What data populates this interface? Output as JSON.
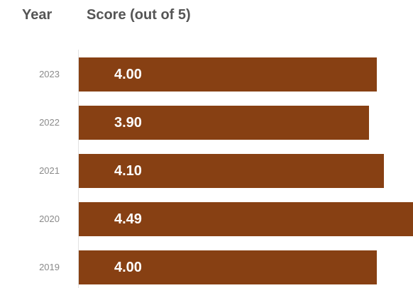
{
  "headers": {
    "year": "Year",
    "score": "Score (out of 5)"
  },
  "chart_data": {
    "type": "bar",
    "orientation": "horizontal",
    "title": "",
    "xlabel": "Score (out of 5)",
    "ylabel": "Year",
    "categories": [
      "2023",
      "2022",
      "2021",
      "2020",
      "2019"
    ],
    "values": [
      4.0,
      3.9,
      4.1,
      4.49,
      4.0
    ],
    "value_labels": [
      "4.00",
      "3.90",
      "4.10",
      "4.49",
      "4.00"
    ],
    "xlim": [
      0,
      4.49
    ],
    "grid": false,
    "bar_color": "#874013",
    "label_color": "#ffffff"
  }
}
